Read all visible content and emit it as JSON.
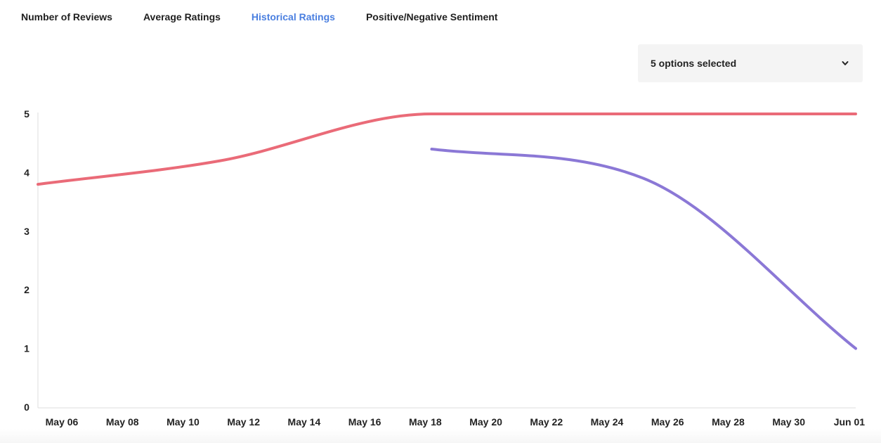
{
  "tabs": [
    {
      "label": "Number of Reviews",
      "active": false
    },
    {
      "label": "Average Ratings",
      "active": false
    },
    {
      "label": "Historical Ratings",
      "active": true
    },
    {
      "label": "Positive/Negative Sentiment",
      "active": false
    }
  ],
  "filter": {
    "label": "5 options selected",
    "icon": "chevron-down-icon"
  },
  "chart_data": {
    "type": "line",
    "title": "",
    "xlabel": "",
    "ylabel": "",
    "ylim": [
      0,
      5
    ],
    "yticks": [
      0,
      1,
      2,
      3,
      4,
      5
    ],
    "xlim": [
      "2024-05-06",
      "2024-06-02"
    ],
    "xticks": [
      "May 06",
      "May 08",
      "May 10",
      "May 12",
      "May 14",
      "May 16",
      "May 18",
      "May 20",
      "May 22",
      "May 24",
      "May 26",
      "May 28",
      "May 30",
      "Jun 01"
    ],
    "grid": false,
    "legend": "none",
    "series": [
      {
        "color": "#ea6b78",
        "x": [
          "2024-05-06",
          "2024-05-12",
          "2024-05-19",
          "2024-05-26",
          "2024-06-02"
        ],
        "y": [
          3.8,
          4.2,
          5.0,
          5.0,
          5.0
        ]
      },
      {
        "color": "#8b78d6",
        "x": [
          "2024-05-19",
          "2024-05-26",
          "2024-06-02"
        ],
        "y": [
          4.4,
          3.9,
          1.0
        ]
      }
    ]
  }
}
